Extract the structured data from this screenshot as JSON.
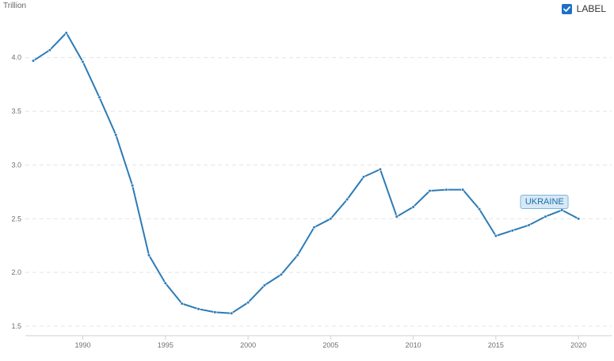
{
  "legend": {
    "label": "LABEL",
    "checked": true,
    "checkbox_color": "#1f6fc4"
  },
  "series_tag": {
    "text": "UKRAINE"
  },
  "colors": {
    "line": "#2c7bb6"
  },
  "chart_data": {
    "type": "line",
    "ylabel": "Trillion",
    "xlim": [
      1987,
      2021
    ],
    "ylim": [
      1.5,
      4.3
    ],
    "y_ticks": [
      1.5,
      2.0,
      2.5,
      3.0,
      3.5,
      4.0
    ],
    "x_ticks": [
      1990,
      1995,
      2000,
      2005,
      2010,
      2015,
      2020
    ],
    "grid": true,
    "legend_position": "top-right",
    "series": [
      {
        "name": "UKRAINE",
        "x": [
          1987,
          1988,
          1989,
          1990,
          1991,
          1992,
          1993,
          1994,
          1995,
          1996,
          1997,
          1998,
          1999,
          2000,
          2001,
          2002,
          2003,
          2004,
          2005,
          2006,
          2007,
          2008,
          2009,
          2010,
          2011,
          2012,
          2013,
          2014,
          2015,
          2016,
          2017,
          2018,
          2019,
          2020
        ],
        "values": [
          3.97,
          4.07,
          4.23,
          3.96,
          3.63,
          3.28,
          2.81,
          2.16,
          1.9,
          1.71,
          1.66,
          1.63,
          1.62,
          1.72,
          1.88,
          1.98,
          2.16,
          2.42,
          2.5,
          2.68,
          2.89,
          2.96,
          2.52,
          2.61,
          2.76,
          2.77,
          2.77,
          2.59,
          2.34,
          2.39,
          2.44,
          2.52,
          2.58,
          2.5
        ]
      }
    ]
  }
}
